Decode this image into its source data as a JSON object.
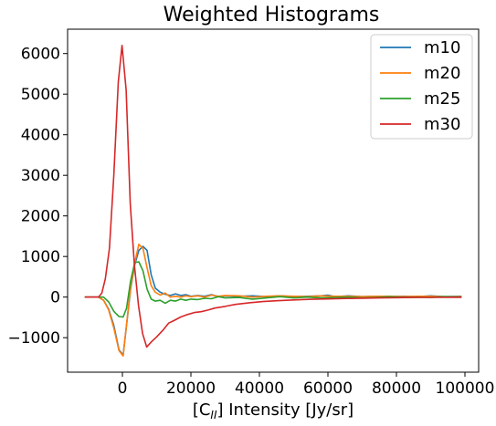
{
  "chart_data": {
    "type": "line",
    "title": "Weighted Histograms",
    "xlabel": {
      "prefix": "[C",
      "subscript": "II",
      "suffix": "] Intensity [Jy/sr]"
    },
    "ylabel": "",
    "xlim": [
      -16000,
      104000
    ],
    "ylim": [
      -1850,
      6600
    ],
    "x_ticks": [
      0,
      20000,
      40000,
      60000,
      80000,
      100000
    ],
    "x_tick_labels": [
      "0",
      "20000",
      "40000",
      "60000",
      "80000",
      "100000"
    ],
    "y_ticks": [
      -1000,
      0,
      1000,
      2000,
      3000,
      4000,
      5000,
      6000
    ],
    "y_tick_labels": [
      "−1000",
      "0",
      "1000",
      "2000",
      "3000",
      "4000",
      "5000",
      "6000"
    ],
    "grid": false,
    "legend_position": "top-right",
    "series": [
      {
        "name": "m10",
        "color": "#1f77b4",
        "points": [
          [
            -11000,
            0
          ],
          [
            -7000,
            0
          ],
          [
            -5500,
            -80
          ],
          [
            -4000,
            -300
          ],
          [
            -2500,
            -700
          ],
          [
            -1000,
            -1300
          ],
          [
            200,
            -1430
          ],
          [
            1200,
            -700
          ],
          [
            2400,
            200
          ],
          [
            3600,
            800
          ],
          [
            4800,
            1150
          ],
          [
            6000,
            1250
          ],
          [
            7200,
            1150
          ],
          [
            8400,
            550
          ],
          [
            9600,
            220
          ],
          [
            11000,
            120
          ],
          [
            12500,
            70
          ],
          [
            14000,
            40
          ],
          [
            15500,
            80
          ],
          [
            17000,
            40
          ],
          [
            18500,
            60
          ],
          [
            20000,
            20
          ],
          [
            22000,
            40
          ],
          [
            24000,
            20
          ],
          [
            26000,
            60
          ],
          [
            28000,
            10
          ],
          [
            30000,
            30
          ],
          [
            34000,
            20
          ],
          [
            38000,
            30
          ],
          [
            42000,
            10
          ],
          [
            46000,
            30
          ],
          [
            50000,
            10
          ],
          [
            54000,
            20
          ],
          [
            58000,
            30
          ],
          [
            60000,
            50
          ],
          [
            62000,
            10
          ],
          [
            66000,
            30
          ],
          [
            70000,
            10
          ],
          [
            74000,
            20
          ],
          [
            78000,
            10
          ],
          [
            82000,
            20
          ],
          [
            86000,
            10
          ],
          [
            90000,
            30
          ],
          [
            94000,
            10
          ],
          [
            99000,
            20
          ]
        ]
      },
      {
        "name": "m20",
        "color": "#ff7f0e",
        "points": [
          [
            -11000,
            0
          ],
          [
            -7000,
            0
          ],
          [
            -5500,
            -80
          ],
          [
            -4000,
            -320
          ],
          [
            -2500,
            -760
          ],
          [
            -1000,
            -1320
          ],
          [
            200,
            -1450
          ],
          [
            1200,
            -680
          ],
          [
            2400,
            230
          ],
          [
            3600,
            850
          ],
          [
            4800,
            1300
          ],
          [
            6000,
            1200
          ],
          [
            7200,
            720
          ],
          [
            8400,
            280
          ],
          [
            9600,
            120
          ],
          [
            11000,
            50
          ],
          [
            12500,
            100
          ],
          [
            14000,
            0
          ],
          [
            15500,
            20
          ],
          [
            17000,
            0
          ],
          [
            18500,
            30
          ],
          [
            20000,
            10
          ],
          [
            22000,
            30
          ],
          [
            24000,
            0
          ],
          [
            26000,
            50
          ],
          [
            28000,
            20
          ],
          [
            30000,
            40
          ],
          [
            34000,
            30
          ],
          [
            38000,
            0
          ],
          [
            42000,
            20
          ],
          [
            46000,
            30
          ],
          [
            50000,
            20
          ],
          [
            54000,
            10
          ],
          [
            58000,
            30
          ],
          [
            62000,
            20
          ],
          [
            66000,
            20
          ],
          [
            70000,
            10
          ],
          [
            74000,
            20
          ],
          [
            78000,
            20
          ],
          [
            82000,
            10
          ],
          [
            86000,
            20
          ],
          [
            90000,
            20
          ],
          [
            94000,
            10
          ],
          [
            99000,
            10
          ]
        ]
      },
      {
        "name": "m25",
        "color": "#2ca02c",
        "points": [
          [
            -11000,
            0
          ],
          [
            -7000,
            0
          ],
          [
            -5500,
            0
          ],
          [
            -4000,
            -120
          ],
          [
            -2500,
            -350
          ],
          [
            -1000,
            -480
          ],
          [
            200,
            -490
          ],
          [
            1200,
            -280
          ],
          [
            2400,
            400
          ],
          [
            3600,
            850
          ],
          [
            4800,
            870
          ],
          [
            6000,
            650
          ],
          [
            7200,
            200
          ],
          [
            8400,
            -50
          ],
          [
            9600,
            -100
          ],
          [
            11000,
            -80
          ],
          [
            12500,
            -150
          ],
          [
            14000,
            -80
          ],
          [
            15500,
            -100
          ],
          [
            17000,
            -50
          ],
          [
            18500,
            -80
          ],
          [
            20000,
            -50
          ],
          [
            22000,
            -60
          ],
          [
            24000,
            -30
          ],
          [
            26000,
            -40
          ],
          [
            28000,
            10
          ],
          [
            30000,
            -20
          ],
          [
            34000,
            -10
          ],
          [
            38000,
            -50
          ],
          [
            42000,
            -20
          ],
          [
            46000,
            10
          ],
          [
            50000,
            -20
          ],
          [
            54000,
            0
          ],
          [
            58000,
            -20
          ],
          [
            62000,
            -10
          ],
          [
            66000,
            0
          ],
          [
            70000,
            -20
          ],
          [
            74000,
            -10
          ],
          [
            78000,
            10
          ],
          [
            82000,
            -10
          ],
          [
            86000,
            0
          ],
          [
            90000,
            -10
          ],
          [
            94000,
            10
          ],
          [
            99000,
            0
          ]
        ]
      },
      {
        "name": "m30",
        "color": "#d62728",
        "points": [
          [
            -11000,
            0
          ],
          [
            -7000,
            0
          ],
          [
            -6000,
            100
          ],
          [
            -5000,
            450
          ],
          [
            -3800,
            1200
          ],
          [
            -2500,
            3000
          ],
          [
            -1200,
            5300
          ],
          [
            -100,
            6200
          ],
          [
            1100,
            5100
          ],
          [
            2300,
            2300
          ],
          [
            3500,
            800
          ],
          [
            4700,
            -200
          ],
          [
            5900,
            -900
          ],
          [
            7100,
            -1230
          ],
          [
            8500,
            -1100
          ],
          [
            10000,
            -980
          ],
          [
            12000,
            -800
          ],
          [
            13500,
            -640
          ],
          [
            15000,
            -580
          ],
          [
            17000,
            -490
          ],
          [
            19000,
            -430
          ],
          [
            21000,
            -380
          ],
          [
            23000,
            -360
          ],
          [
            25000,
            -320
          ],
          [
            27000,
            -270
          ],
          [
            30000,
            -230
          ],
          [
            33000,
            -180
          ],
          [
            37000,
            -140
          ],
          [
            41000,
            -110
          ],
          [
            45000,
            -90
          ],
          [
            50000,
            -70
          ],
          [
            55000,
            -55
          ],
          [
            60000,
            -45
          ],
          [
            65000,
            -35
          ],
          [
            70000,
            -28
          ],
          [
            75000,
            -20
          ],
          [
            80000,
            -15
          ],
          [
            85000,
            -10
          ],
          [
            90000,
            -8
          ],
          [
            95000,
            -5
          ],
          [
            99000,
            -5
          ]
        ]
      }
    ]
  }
}
